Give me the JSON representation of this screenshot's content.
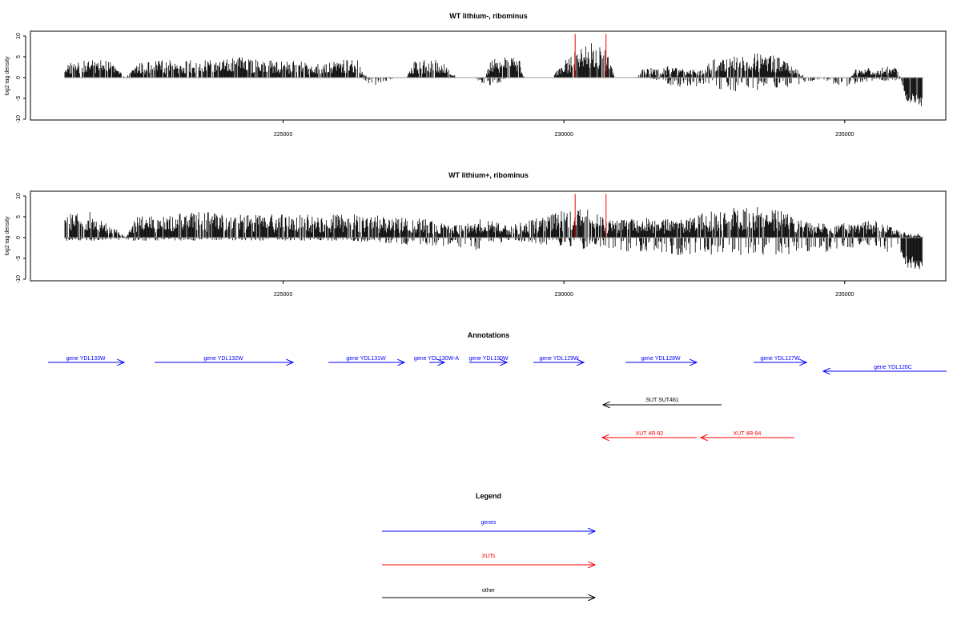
{
  "colors": {
    "bar": "#000000",
    "highlight": "#ff0000",
    "gene": "#0000ff",
    "xut": "#ff0000",
    "other": "#000000",
    "baseline": "#999999"
  },
  "chart_data": [
    {
      "type": "bar",
      "title": "WT lithium-, ribominus",
      "ylabel": "log2 tag density",
      "ylim": [
        -10,
        10
      ],
      "y_ticks": [
        "-10",
        "-5",
        "0",
        "5",
        "10"
      ],
      "xlim": [
        220500,
        236800
      ],
      "x_ticks": [
        {
          "value": 225000,
          "label": "225000"
        },
        {
          "value": 230000,
          "label": "230000"
        },
        {
          "value": 235000,
          "label": "235000"
        }
      ],
      "data_range": [
        221100,
        236400
      ],
      "profile": {
        "positive": [
          [
            221100,
            2.5
          ],
          [
            221500,
            3.0
          ],
          [
            221900,
            3.0
          ],
          [
            222200,
            0
          ],
          [
            222400,
            2.5
          ],
          [
            222800,
            3.0
          ],
          [
            223200,
            3.0
          ],
          [
            223700,
            3.0
          ],
          [
            224200,
            3.5
          ],
          [
            224600,
            3.0
          ],
          [
            225000,
            3.0
          ],
          [
            225600,
            2.5
          ],
          [
            226000,
            3.0
          ],
          [
            226300,
            3.5
          ],
          [
            226500,
            0
          ],
          [
            227200,
            0
          ],
          [
            227300,
            3.0
          ],
          [
            227800,
            3.0
          ],
          [
            228100,
            0
          ],
          [
            228600,
            0
          ],
          [
            228700,
            3.5
          ],
          [
            229200,
            3.5
          ],
          [
            229300,
            0
          ],
          [
            229800,
            0
          ],
          [
            229900,
            2.0
          ],
          [
            230200,
            4.5
          ],
          [
            230500,
            6.0
          ],
          [
            230800,
            5.0
          ],
          [
            230900,
            0
          ],
          [
            231300,
            0
          ],
          [
            231400,
            1.5
          ],
          [
            231900,
            2.0
          ],
          [
            232100,
            1.5
          ],
          [
            232500,
            1.5
          ],
          [
            232600,
            3.0
          ],
          [
            233200,
            4.5
          ],
          [
            233800,
            4.0
          ],
          [
            234100,
            2.0
          ],
          [
            234300,
            0
          ],
          [
            235100,
            0
          ],
          [
            235200,
            1.5
          ],
          [
            235900,
            2.0
          ],
          [
            236000,
            0
          ],
          [
            236400,
            0
          ]
        ],
        "negative": [
          [
            221100,
            0
          ],
          [
            226400,
            0
          ],
          [
            226600,
            -1.5
          ],
          [
            227000,
            0
          ],
          [
            228400,
            0
          ],
          [
            228700,
            -2.0
          ],
          [
            229000,
            0
          ],
          [
            231500,
            0
          ],
          [
            232000,
            -1.5
          ],
          [
            232500,
            -1.5
          ],
          [
            233000,
            -2.5
          ],
          [
            233500,
            -2.0
          ],
          [
            234000,
            -1.5
          ],
          [
            234500,
            -0.5
          ],
          [
            235000,
            -1.5
          ],
          [
            235500,
            -0.5
          ],
          [
            236000,
            -0.5
          ],
          [
            236100,
            -5.0
          ],
          [
            236400,
            -6.0
          ]
        ]
      },
      "red_lines": [
        {
          "x": 230200,
          "y": 10.5
        },
        {
          "x": 230750,
          "y": 10.5
        }
      ]
    },
    {
      "type": "bar",
      "title": "WT lithium+, ribominus",
      "ylabel": "log2 tag density",
      "ylim": [
        -10,
        10
      ],
      "y_ticks": [
        "-10",
        "-5",
        "0",
        "5",
        "10"
      ],
      "xlim": [
        220500,
        236800
      ],
      "x_ticks": [
        {
          "value": 225000,
          "label": "225000"
        },
        {
          "value": 230000,
          "label": "230000"
        },
        {
          "value": 235000,
          "label": "235000"
        }
      ],
      "data_range": [
        221100,
        236400
      ],
      "profile": {
        "positive": [
          [
            221100,
            4.0
          ],
          [
            221700,
            4.5
          ],
          [
            222200,
            0
          ],
          [
            222400,
            4.0
          ],
          [
            223000,
            4.0
          ],
          [
            223600,
            4.5
          ],
          [
            224200,
            4.0
          ],
          [
            224800,
            4.0
          ],
          [
            225400,
            4.0
          ],
          [
            226000,
            4.0
          ],
          [
            226600,
            4.0
          ],
          [
            227000,
            3.5
          ],
          [
            227500,
            3.5
          ],
          [
            228000,
            2.0
          ],
          [
            228500,
            3.5
          ],
          [
            229000,
            2.0
          ],
          [
            229400,
            3.0
          ],
          [
            229900,
            4.5
          ],
          [
            230400,
            5.0
          ],
          [
            230800,
            3.0
          ],
          [
            231400,
            3.5
          ],
          [
            232000,
            3.0
          ],
          [
            232600,
            4.5
          ],
          [
            233300,
            5.5
          ],
          [
            233900,
            4.5
          ],
          [
            234400,
            2.5
          ],
          [
            235000,
            2.5
          ],
          [
            235600,
            3.0
          ],
          [
            236000,
            1.0
          ],
          [
            236400,
            0.5
          ]
        ],
        "negative": [
          [
            221100,
            -0.5
          ],
          [
            223000,
            -0.5
          ],
          [
            226000,
            -0.5
          ],
          [
            227000,
            -1.0
          ],
          [
            228500,
            -2.0
          ],
          [
            229000,
            -0.5
          ],
          [
            230500,
            -2.0
          ],
          [
            231500,
            -2.5
          ],
          [
            232500,
            -3.0
          ],
          [
            233500,
            -3.0
          ],
          [
            234500,
            -2.5
          ],
          [
            235500,
            -1.5
          ],
          [
            236000,
            -3.0
          ],
          [
            236100,
            -6.0
          ],
          [
            236400,
            -7.0
          ]
        ]
      },
      "red_lines": [
        {
          "x": 230200,
          "y": 10.5
        },
        {
          "x": 230750,
          "y": 10.5
        }
      ]
    }
  ],
  "annotations": {
    "title": "Annotations",
    "genes": [
      {
        "label": "gene YDL133W"
      },
      {
        "label": "gene YDL132W"
      },
      {
        "label": "gene YDL131W"
      },
      {
        "label": "gene YDL130W-A"
      },
      {
        "label": "gene YDL130W"
      },
      {
        "label": "gene YDL129W"
      },
      {
        "label": "gene YDL128W"
      },
      {
        "label": "gene YDL127W"
      },
      {
        "label": "gene YDL126C"
      }
    ],
    "suts": [
      {
        "label": "SUT SUT461"
      }
    ],
    "xuts": [
      {
        "label": "XUT 4R-92"
      },
      {
        "label": "XUT 4R-94"
      }
    ]
  },
  "legend": {
    "title": "Legend",
    "items": [
      {
        "label": "genes"
      },
      {
        "label": "XUTs"
      },
      {
        "label": "other"
      }
    ]
  }
}
